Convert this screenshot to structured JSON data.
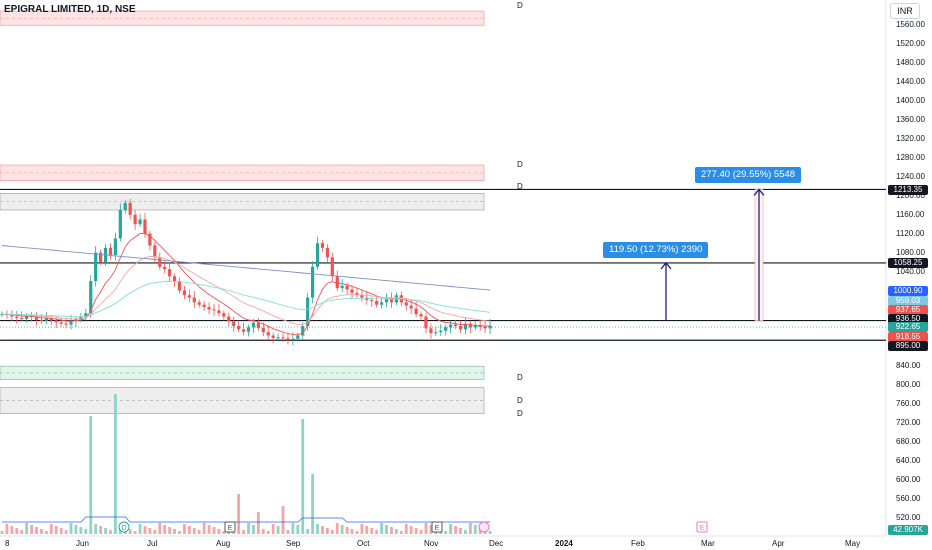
{
  "header": {
    "title": "EPIGRAL LIMITED, 1D, NSE",
    "currency": "INR"
  },
  "price_axis": [
    "1560.00",
    "1520.00",
    "1480.00",
    "1440.00",
    "1400.00",
    "1360.00",
    "1320.00",
    "1280.00",
    "1240.00",
    "1200.00",
    "1160.00",
    "1120.00",
    "1080.00",
    "1040.00",
    "840.00",
    "800.00",
    "760.00",
    "720.00",
    "680.00",
    "640.00",
    "600.00",
    "560.00",
    "520.00"
  ],
  "time_axis": [
    "8",
    "Jun",
    "Jul",
    "Aug",
    "Sep",
    "Oct",
    "Nov",
    "Dec",
    "2024",
    "Feb",
    "Mar",
    "Apr",
    "May"
  ],
  "price_tags": {
    "level_1213": "1213.35",
    "level_1058": "1058.25",
    "tag_1000": "1000.90",
    "tag_959": "959.03",
    "tag_937": "937.65",
    "level_936": "936.50",
    "tag_922": "922.65",
    "tag_918": "918.55",
    "level_895": "895.00",
    "volume": "42.907K"
  },
  "measurements": {
    "short": "119.50 (12.73%) 2390",
    "long": "277.40 (29.55%) 5548"
  },
  "zone_markers": [
    "D",
    "D",
    "D",
    "D",
    "D",
    "D"
  ],
  "event_markers": [
    "D",
    "E",
    "E",
    "E"
  ],
  "colors": {
    "up": "#26a69a",
    "down": "#ef5350",
    "accent": "#2a8de6",
    "ma_blue": "#7e8fc9"
  },
  "chart_data": {
    "type": "candlestick",
    "title": "EPIGRAL LIMITED, 1D, NSE",
    "ylim": [
      505,
      1595
    ],
    "closes": [
      950,
      948,
      945,
      942,
      940,
      946,
      944,
      938,
      936,
      941,
      937,
      933,
      930,
      928,
      935,
      939,
      945,
      952,
      1020,
      1080,
      1060,
      1090,
      1075,
      1110,
      1170,
      1185,
      1160,
      1140,
      1150,
      1120,
      1095,
      1070,
      1050,
      1045,
      1030,
      1020,
      1000,
      990,
      985,
      975,
      970,
      965,
      960,
      958,
      952,
      945,
      935,
      925,
      918,
      913,
      922,
      932,
      921,
      912,
      905,
      900,
      901,
      899,
      896,
      898,
      905,
      925,
      985,
      1050,
      1100,
      1090,
      1070,
      1030,
      1005,
      1010,
      1002,
      995,
      990,
      985,
      980,
      978,
      970,
      975,
      982,
      975,
      990,
      975,
      968,
      962,
      950,
      945,
      920,
      910,
      912,
      915,
      922,
      928,
      925,
      918,
      930,
      922,
      926,
      923,
      920,
      926
    ],
    "levels": [
      1213.35,
      1058.25,
      936.5,
      895.0
    ],
    "volume_last": "42.907K"
  }
}
